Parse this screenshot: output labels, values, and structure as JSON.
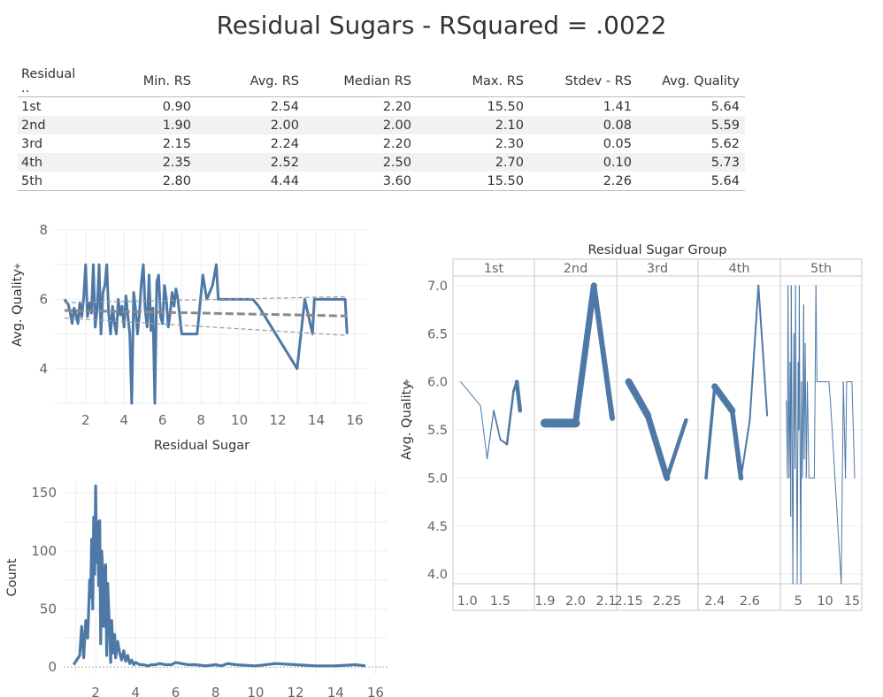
{
  "title": "Residual Sugars  - RSquared = .0022",
  "table": {
    "headers": [
      "Residual ..",
      "Min. RS",
      "Avg. RS",
      "Median RS",
      "Max. RS",
      "Stdev - RS",
      "Avg. Quality"
    ],
    "rows": [
      [
        "1st",
        "0.90",
        "2.54",
        "2.20",
        "15.50",
        "1.41",
        "5.64"
      ],
      [
        "2nd",
        "1.90",
        "2.00",
        "2.00",
        "2.10",
        "0.08",
        "5.59"
      ],
      [
        "3rd",
        "2.15",
        "2.24",
        "2.20",
        "2.30",
        "0.05",
        "5.62"
      ],
      [
        "4th",
        "2.35",
        "2.52",
        "2.50",
        "2.70",
        "0.10",
        "5.73"
      ],
      [
        "5th",
        "2.80",
        "4.44",
        "3.60",
        "15.50",
        "2.26",
        "5.64"
      ]
    ]
  },
  "chart_data": [
    {
      "type": "line",
      "xlabel": "Residual Sugar",
      "ylabel": "Avg. Quality",
      "xlim": [
        0.4,
        16.6
      ],
      "ylim": [
        3,
        8
      ],
      "xticks": [
        "2",
        "4",
        "6",
        "8",
        "10",
        "12",
        "14",
        "16"
      ],
      "yticks": [
        "4",
        "6",
        "8"
      ],
      "color": "#4e79a7",
      "trend": {
        "x": [
          0.9,
          15.6
        ],
        "y": [
          5.68,
          5.52
        ],
        "upper": [
          5.9,
          6.08
        ],
        "lower": [
          5.46,
          4.96
        ]
      },
      "series": [
        {
          "x": [
            0.9,
            1.1,
            1.2,
            1.3,
            1.4,
            1.5,
            1.6,
            1.7,
            1.8,
            1.9,
            2.0,
            2.1,
            2.2,
            2.3,
            2.4,
            2.5,
            2.6,
            2.7,
            2.8,
            2.9,
            3.0,
            3.1,
            3.2,
            3.3,
            3.4,
            3.5,
            3.6,
            3.7,
            3.8,
            3.9,
            4.0,
            4.1,
            4.2,
            4.3,
            4.4,
            4.5,
            4.6,
            4.7,
            4.8,
            4.9,
            5.0,
            5.1,
            5.2,
            5.3,
            5.4,
            5.5,
            5.6,
            5.7,
            5.8,
            5.9,
            6.0,
            6.1,
            6.2,
            6.3,
            6.4,
            6.5,
            6.6,
            6.7,
            6.8,
            7.0,
            7.2,
            7.5,
            7.8,
            8.1,
            8.3,
            8.6,
            8.8,
            8.9,
            9.0,
            10.7,
            11.0,
            13.0,
            13.4,
            13.8,
            13.9,
            15.4,
            15.5,
            15.6
          ],
          "y": [
            6.0,
            5.85,
            5.6,
            5.3,
            5.75,
            5.55,
            5.3,
            5.9,
            5.5,
            6.05,
            7.0,
            5.5,
            5.9,
            5.6,
            7.0,
            5.2,
            5.7,
            7.0,
            5.0,
            6.2,
            6.4,
            7.0,
            5.6,
            5.0,
            5.8,
            5.3,
            5.0,
            6.0,
            5.55,
            5.8,
            5.2,
            6.1,
            5.5,
            5.0,
            3.0,
            6.2,
            5.7,
            5.0,
            5.6,
            6.5,
            7.0,
            5.7,
            5.2,
            6.7,
            5.1,
            5.75,
            3.0,
            6.5,
            6.7,
            5.5,
            5.3,
            6.4,
            6.0,
            5.2,
            5.6,
            6.2,
            5.8,
            6.3,
            6.0,
            5.0,
            5.0,
            5.0,
            5.0,
            6.7,
            6.0,
            6.4,
            7.0,
            6.0,
            6.0,
            6.0,
            5.8,
            4.0,
            6.0,
            5.0,
            6.0,
            6.0,
            6.0,
            5.0
          ]
        }
      ]
    },
    {
      "type": "line",
      "xlabel": "",
      "ylabel": "Count",
      "xlim": [
        0.4,
        16.6
      ],
      "ylim": [
        -6,
        160
      ],
      "xticks": [
        "2",
        "4",
        "6",
        "8",
        "10",
        "12",
        "14",
        "16"
      ],
      "yticks": [
        "0",
        "50",
        "100",
        "150"
      ],
      "color": "#4e79a7",
      "series": [
        {
          "x": [
            0.9,
            1.2,
            1.3,
            1.4,
            1.5,
            1.6,
            1.7,
            1.75,
            1.8,
            1.85,
            1.9,
            1.95,
            2.0,
            2.05,
            2.1,
            2.15,
            2.2,
            2.25,
            2.3,
            2.35,
            2.4,
            2.45,
            2.5,
            2.55,
            2.6,
            2.65,
            2.7,
            2.75,
            2.8,
            2.85,
            2.9,
            2.95,
            3.0,
            3.1,
            3.2,
            3.3,
            3.4,
            3.5,
            3.6,
            3.7,
            3.8,
            3.9,
            4.0,
            4.2,
            4.4,
            4.6,
            4.8,
            5.0,
            5.2,
            5.5,
            5.8,
            6.0,
            6.3,
            6.6,
            7.0,
            7.5,
            8.0,
            8.3,
            8.6,
            9.0,
            10.0,
            11.0,
            12.0,
            13.0,
            14.0,
            15.0,
            15.5
          ],
          "y": [
            2,
            10,
            35,
            8,
            40,
            25,
            75,
            60,
            110,
            50,
            129,
            80,
            156,
            90,
            125,
            70,
            126,
            20,
            100,
            85,
            35,
            60,
            88,
            10,
            72,
            50,
            30,
            4,
            40,
            20,
            12,
            28,
            8,
            22,
            12,
            6,
            14,
            5,
            10,
            3,
            6,
            2,
            4,
            2,
            2,
            1,
            2,
            2,
            3,
            2,
            2,
            4,
            3,
            2,
            2,
            1,
            2,
            1,
            3,
            2,
            1,
            3,
            2,
            1,
            1,
            2,
            1
          ]
        }
      ]
    },
    {
      "type": "line",
      "title": "Residual Sugar Group",
      "ylabel": "Avg. Quality",
      "ylim": [
        3.9,
        7.1
      ],
      "yticks": [
        "4.0",
        "4.5",
        "5.0",
        "5.5",
        "6.0",
        "6.5",
        "7.0"
      ],
      "color": "#4e79a7",
      "panels": [
        {
          "label": "1st",
          "xlim": [
            0.85,
            1.95
          ],
          "xticks": [
            {
              "v": 1.0,
              "t": "1.0"
            },
            {
              "v": 1.5,
              "t": "1.5"
            }
          ],
          "points": [
            [
              0.9,
              6.0,
              1
            ],
            [
              1.2,
              5.75,
              1
            ],
            [
              1.3,
              5.2,
              1
            ],
            [
              1.4,
              5.7,
              1.5
            ],
            [
              1.5,
              5.4,
              2
            ],
            [
              1.6,
              5.35,
              2
            ],
            [
              1.7,
              5.9,
              3
            ],
            [
              1.75,
              6.0,
              3
            ],
            [
              1.8,
              5.7,
              6
            ]
          ]
        },
        {
          "label": "2nd",
          "xlim": [
            1.88,
            2.12
          ],
          "xticks": [
            {
              "v": 1.9,
              "t": "1.9"
            },
            {
              "v": 2.0,
              "t": "2.0"
            },
            {
              "v": 2.1,
              "t": "2.1"
            }
          ],
          "points": [
            [
              1.9,
              5.57,
              8
            ],
            [
              2.0,
              5.57,
              12
            ],
            [
              2.06,
              7.0,
              2
            ],
            [
              2.12,
              5.62,
              10
            ]
          ]
        },
        {
          "label": "3rd",
          "xlim": [
            2.13,
            2.32
          ],
          "xticks": [
            {
              "v": 2.15,
              "t": "2.15"
            },
            {
              "v": 2.25,
              "t": "2.25"
            }
          ],
          "points": [
            [
              2.15,
              6.0,
              4
            ],
            [
              2.2,
              5.65,
              12
            ],
            [
              2.25,
              5.0,
              2
            ],
            [
              2.3,
              5.6,
              7
            ]
          ]
        },
        {
          "label": "4th",
          "xlim": [
            2.33,
            2.75
          ],
          "xticks": [
            {
              "v": 2.4,
              "t": "2.4"
            },
            {
              "v": 2.6,
              "t": "2.6"
            }
          ],
          "points": [
            [
              2.35,
              5.0,
              1
            ],
            [
              2.4,
              5.95,
              6
            ],
            [
              2.5,
              5.7,
              9
            ],
            [
              2.55,
              5.0,
              2
            ],
            [
              2.6,
              5.6,
              2
            ],
            [
              2.65,
              7.0,
              2
            ],
            [
              2.7,
              5.65,
              2
            ]
          ]
        },
        {
          "label": "5th",
          "xlim": [
            2.5,
            16.0
          ],
          "xticks": [
            {
              "v": 5,
              "t": "5"
            },
            {
              "v": 10,
              "t": "10"
            },
            {
              "v": 15,
              "t": "15"
            }
          ],
          "points": [
            [
              2.8,
              5.8,
              1
            ],
            [
              3.0,
              5.0,
              1
            ],
            [
              3.1,
              7.0,
              1
            ],
            [
              3.3,
              5.0,
              1
            ],
            [
              3.5,
              6.2,
              1
            ],
            [
              3.6,
              4.6,
              1
            ],
            [
              3.7,
              7.0,
              1
            ],
            [
              3.9,
              5.0,
              1
            ],
            [
              4.0,
              3.9,
              1
            ],
            [
              4.2,
              6.5,
              1
            ],
            [
              4.4,
              5.1,
              1
            ],
            [
              4.5,
              7.0,
              1
            ],
            [
              4.7,
              5.0,
              1
            ],
            [
              4.8,
              3.9,
              1
            ],
            [
              5.0,
              6.2,
              1
            ],
            [
              5.1,
              5.5,
              1
            ],
            [
              5.2,
              7.0,
              1
            ],
            [
              5.3,
              5.7,
              1
            ],
            [
              5.5,
              3.9,
              1
            ],
            [
              5.6,
              6.0,
              1
            ],
            [
              5.8,
              5.0,
              1
            ],
            [
              6.0,
              6.8,
              1
            ],
            [
              6.1,
              5.2,
              1
            ],
            [
              6.3,
              6.4,
              1
            ],
            [
              6.5,
              5.0,
              1
            ],
            [
              6.7,
              6.0,
              1
            ],
            [
              7.0,
              5.0,
              1
            ],
            [
              8.0,
              5.0,
              1
            ],
            [
              8.3,
              7.0,
              1
            ],
            [
              8.5,
              6.0,
              1
            ],
            [
              9.0,
              6.0,
              1
            ],
            [
              10.0,
              6.0,
              1
            ],
            [
              10.7,
              6.0,
              1
            ],
            [
              11.0,
              5.8,
              1
            ],
            [
              13.0,
              3.9,
              1
            ],
            [
              13.4,
              6.0,
              1
            ],
            [
              13.8,
              5.0,
              1
            ],
            [
              14.0,
              6.0,
              1
            ],
            [
              15.0,
              6.0,
              1
            ],
            [
              15.5,
              5.0,
              1
            ]
          ]
        }
      ]
    }
  ]
}
